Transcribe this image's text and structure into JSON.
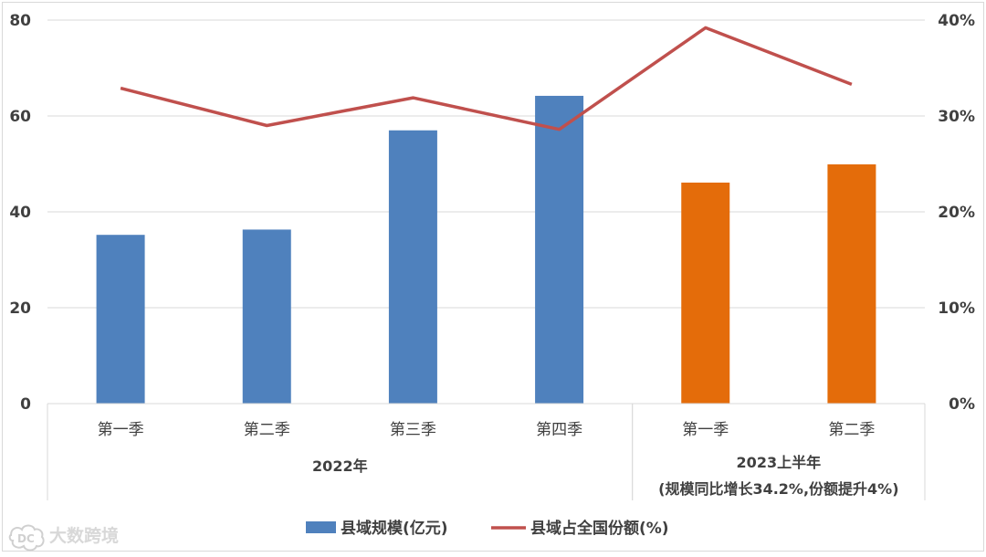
{
  "chart_data": {
    "type": "bar",
    "categories": [
      "第一季",
      "第二季",
      "第三季",
      "第四季",
      "第一季",
      "第二季"
    ],
    "groups": [
      {
        "label": "2022年",
        "sublabel": "",
        "span": [
          0,
          3
        ]
      },
      {
        "label": "2023上半年",
        "sublabel": "(规模同比增长34.2%,份额提升4%)",
        "span": [
          4,
          5
        ]
      }
    ],
    "series": [
      {
        "name": "县域规模(亿元)",
        "type": "bar",
        "axis": "left",
        "values": [
          35.2,
          36.3,
          57.0,
          64.2,
          46.1,
          49.9
        ],
        "colors": [
          "#4f81bd",
          "#4f81bd",
          "#4f81bd",
          "#4f81bd",
          "#e46c0a",
          "#e46c0a"
        ]
      },
      {
        "name": "县域占全国份额(%)",
        "type": "line",
        "axis": "right",
        "values": [
          32.9,
          29.0,
          31.9,
          28.6,
          39.2,
          33.3
        ],
        "color": "#c0504d"
      }
    ],
    "yaxis_left": {
      "min": 0,
      "max": 80,
      "ticks": [
        0,
        20,
        40,
        60,
        80
      ],
      "tick_labels": [
        "0",
        "20",
        "40",
        "60",
        "80"
      ]
    },
    "yaxis_right": {
      "min": 0,
      "max": 40,
      "ticks": [
        0,
        10,
        20,
        30,
        40
      ],
      "tick_labels": [
        "0%",
        "10%",
        "20%",
        "30%",
        "40%"
      ]
    },
    "grid": true,
    "legend_position": "bottom",
    "title": "",
    "xlabel": "",
    "ylabel": ""
  },
  "watermark": {
    "text": "大数跨境"
  }
}
